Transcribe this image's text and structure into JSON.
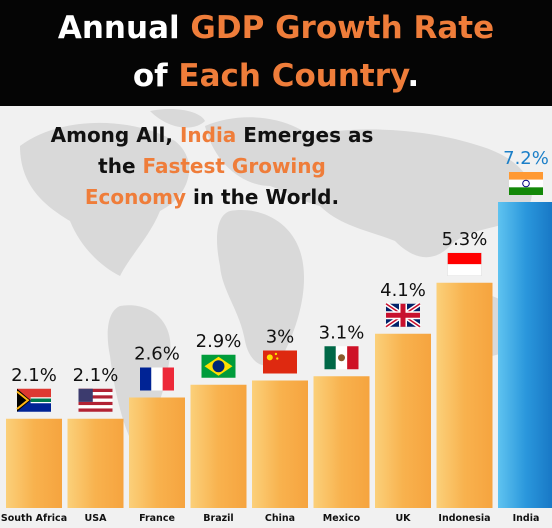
{
  "header": {
    "line1_pre": "Annual ",
    "line1_accent": "GDP Growth Rate",
    "line2_pre": "of ",
    "line2_accent": "Each Country",
    "line2_post": "."
  },
  "subtitle": {
    "p1": "Among All, ",
    "p2": "India",
    "p3": " Emerges as",
    "p4": "the ",
    "p5": "Fastest Growing",
    "p6": "Economy",
    "p7": " in the World."
  },
  "colors": {
    "accent": "#ef7d3a",
    "bar": "#f9b04d",
    "highlight_bar": "#1f8fd6",
    "highlight_text": "#1b7fc8"
  },
  "chart_data": {
    "type": "bar",
    "categories": [
      "South Africa",
      "USA",
      "France",
      "Brazil",
      "China",
      "Mexico",
      "UK",
      "Indonesia",
      "India"
    ],
    "values": [
      2.1,
      2.1,
      2.6,
      2.9,
      3.0,
      3.1,
      4.1,
      5.3,
      7.2
    ],
    "value_labels": [
      "2.1%",
      "2.1%",
      "2.6%",
      "2.9%",
      "3%",
      "3.1%",
      "4.1%",
      "5.3%",
      "7.2%"
    ],
    "flags": [
      "south-africa-flag-icon",
      "usa-flag-icon",
      "france-flag-icon",
      "brazil-flag-icon",
      "china-flag-icon",
      "mexico-flag-icon",
      "uk-flag-icon",
      "indonesia-flag-icon",
      "india-flag-icon"
    ],
    "highlight": "India",
    "ylim": [
      0,
      7.2
    ],
    "grid": false
  }
}
